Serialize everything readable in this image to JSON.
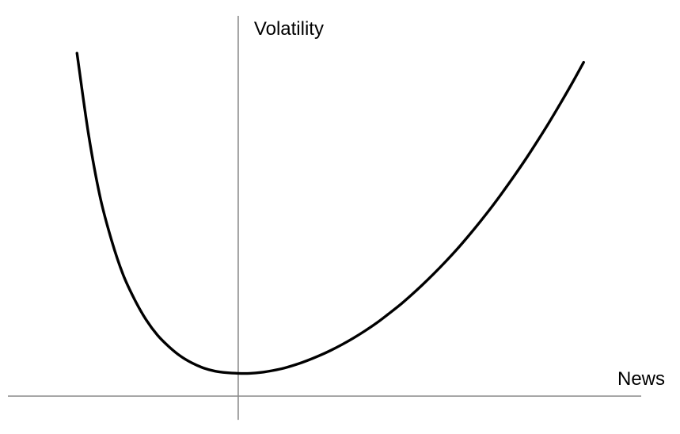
{
  "chart_data": {
    "type": "line",
    "title": "",
    "xlabel": "News",
    "ylabel": "Volatility",
    "grid": false,
    "xlim": [
      -1.0,
      1.75
    ],
    "ylim": [
      -0.02,
      1.22
    ],
    "series": [
      {
        "x": [
          -0.7,
          -0.65,
          -0.6,
          -0.55,
          -0.5,
          -0.45,
          -0.4,
          -0.35,
          -0.3,
          -0.25,
          -0.2,
          -0.15,
          -0.1,
          -0.05,
          0.0,
          0.05,
          0.1,
          0.15,
          0.2,
          0.25,
          0.3,
          0.35,
          0.4,
          0.45,
          0.5,
          0.55,
          0.6,
          0.65,
          0.7,
          0.75,
          0.8,
          0.85,
          0.9,
          0.95,
          1.0,
          1.05,
          1.1,
          1.15,
          1.2,
          1.25,
          1.3,
          1.35,
          1.4,
          1.45,
          1.5
        ],
        "y": [
          1.1,
          0.84,
          0.64,
          0.5,
          0.39,
          0.31,
          0.245,
          0.195,
          0.158,
          0.128,
          0.106,
          0.09,
          0.08,
          0.075,
          0.073,
          0.073,
          0.076,
          0.082,
          0.09,
          0.101,
          0.114,
          0.129,
          0.146,
          0.165,
          0.186,
          0.209,
          0.234,
          0.262,
          0.291,
          0.323,
          0.357,
          0.393,
          0.431,
          0.471,
          0.514,
          0.559,
          0.606,
          0.656,
          0.708,
          0.762,
          0.819,
          0.878,
          0.94,
          1.004,
          1.071
        ]
      }
    ]
  }
}
